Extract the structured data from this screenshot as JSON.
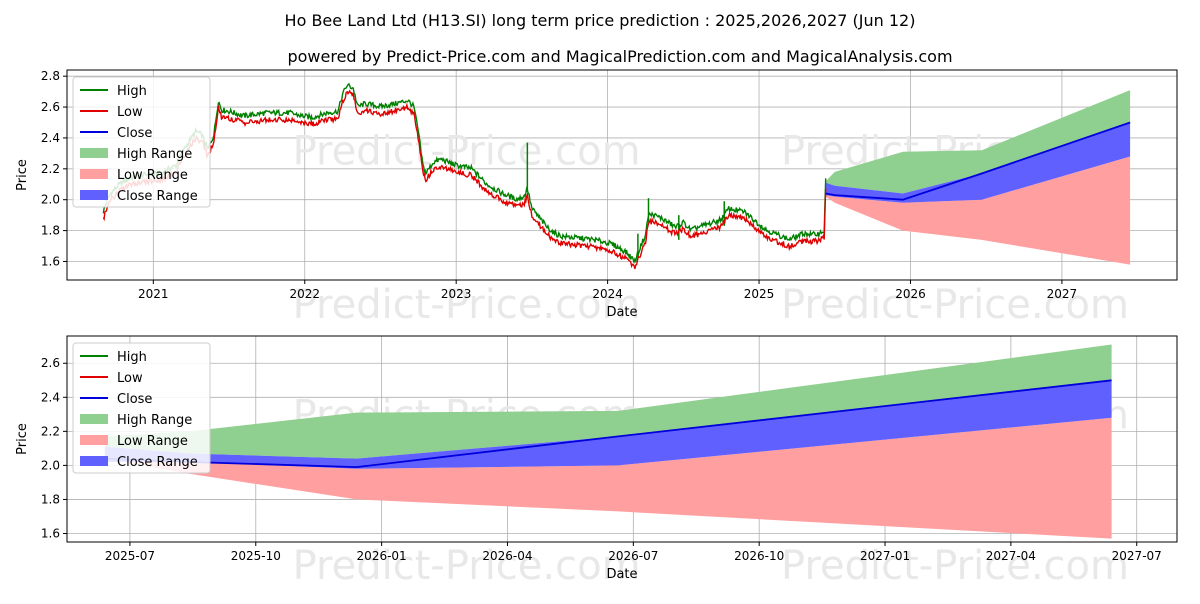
{
  "title": "Ho Bee Land Ltd (H13.SI) long term price prediction : 2025,2026,2027 (Jun 12)",
  "subtitle": "powered by Predict-Price.com and MagicalPrediction.com and MagicalAnalysis.com",
  "watermark": "Predict-Price.com",
  "colors": {
    "high": "#008000",
    "low": "#e00000",
    "close": "#0000dd",
    "high_range": "#8fcf8f",
    "low_range": "#ff9f9f",
    "close_range": "#6060ff"
  },
  "chart_data": [
    {
      "type": "line",
      "name": "long-term",
      "xlabel": "Date",
      "ylabel": "Price",
      "xlim": [
        2020.43,
        2027.76
      ],
      "ylim": [
        1.48,
        2.84
      ],
      "xticks": [
        {
          "v": 2021,
          "label": "2021"
        },
        {
          "v": 2022,
          "label": "2022"
        },
        {
          "v": 2023,
          "label": "2023"
        },
        {
          "v": 2024,
          "label": "2024"
        },
        {
          "v": 2025,
          "label": "2025"
        },
        {
          "v": 2026,
          "label": "2026"
        },
        {
          "v": 2027,
          "label": "2027"
        }
      ],
      "yticks": [
        {
          "v": 1.6,
          "label": "1.6"
        },
        {
          "v": 1.8,
          "label": "1.8"
        },
        {
          "v": 2.0,
          "label": "2.0"
        },
        {
          "v": 2.2,
          "label": "2.2"
        },
        {
          "v": 2.4,
          "label": "2.4"
        },
        {
          "v": 2.6,
          "label": "2.6"
        },
        {
          "v": 2.8,
          "label": "2.8"
        }
      ],
      "legend": [
        "High",
        "Low",
        "Close",
        "High Range",
        "Low Range",
        "Close Range"
      ],
      "legend_position": "top-left",
      "history": {
        "x": [
          2020.67,
          2020.69,
          2020.72,
          2020.78,
          2020.85,
          2020.95,
          2021.05,
          2021.15,
          2021.2,
          2021.28,
          2021.32,
          2021.36,
          2021.4,
          2021.43,
          2021.45,
          2021.5,
          2021.6,
          2021.75,
          2021.9,
          2021.98,
          2022.05,
          2022.15,
          2022.22,
          2022.25,
          2022.28,
          2022.32,
          2022.35,
          2022.4,
          2022.5,
          2022.6,
          2022.68,
          2022.72,
          2022.75,
          2022.78,
          2022.8,
          2022.85,
          2022.9,
          2023.0,
          2023.1,
          2023.2,
          2023.3,
          2023.4,
          2023.45,
          2023.47,
          2023.5,
          2023.55,
          2023.6,
          2023.65,
          2023.7,
          2023.8,
          2023.9,
          2024.0,
          2024.05,
          2024.12,
          2024.18,
          2024.22,
          2024.25,
          2024.27,
          2024.3,
          2024.35,
          2024.45,
          2024.5,
          2024.55,
          2024.6,
          2024.7,
          2024.75,
          2024.8,
          2024.9,
          2025.0,
          2025.05,
          2025.1,
          2025.15,
          2025.2,
          2025.25,
          2025.3,
          2025.35,
          2025.4,
          2025.43,
          2025.44
        ],
        "close": [
          1.9,
          1.96,
          2.02,
          2.08,
          2.12,
          2.14,
          2.15,
          2.2,
          2.3,
          2.42,
          2.4,
          2.3,
          2.4,
          2.62,
          2.56,
          2.55,
          2.52,
          2.54,
          2.54,
          2.52,
          2.51,
          2.54,
          2.55,
          2.66,
          2.72,
          2.7,
          2.58,
          2.6,
          2.58,
          2.6,
          2.62,
          2.58,
          2.42,
          2.2,
          2.15,
          2.22,
          2.24,
          2.2,
          2.18,
          2.08,
          2.02,
          1.98,
          2.0,
          2.05,
          1.92,
          1.86,
          1.8,
          1.76,
          1.74,
          1.73,
          1.72,
          1.7,
          1.68,
          1.64,
          1.58,
          1.68,
          1.75,
          1.88,
          1.88,
          1.86,
          1.8,
          1.83,
          1.78,
          1.8,
          1.83,
          1.85,
          1.92,
          1.9,
          1.82,
          1.78,
          1.76,
          1.74,
          1.72,
          1.74,
          1.76,
          1.75,
          1.76,
          1.78,
          2.1
        ],
        "spikes": [
          {
            "x": 2023.47,
            "high": 2.37
          },
          {
            "x": 2024.27,
            "high": 2.01
          },
          {
            "x": 2024.2,
            "high": 1.78
          },
          {
            "x": 2024.47,
            "high": 1.9
          },
          {
            "x": 2024.77,
            "high": 1.99
          }
        ]
      },
      "forecast": {
        "x": [
          2025.44,
          2025.5,
          2025.95,
          2026.47,
          2027.45
        ],
        "close": [
          2.04,
          2.03,
          2.0,
          2.17,
          2.5
        ],
        "high": [
          2.12,
          2.18,
          2.31,
          2.32,
          2.71
        ],
        "low": [
          2.02,
          1.98,
          1.8,
          1.74,
          1.58
        ],
        "close_hi": [
          2.11,
          2.09,
          2.04,
          2.17,
          2.5
        ],
        "close_lo": [
          2.03,
          2.02,
          1.98,
          2.0,
          2.28
        ]
      }
    },
    {
      "type": "area",
      "name": "zoomed-forecast",
      "xlabel": "Date",
      "ylabel": "Price",
      "xlim": [
        2025.375,
        2027.58
      ],
      "ylim": [
        1.55,
        2.76
      ],
      "xticks": [
        {
          "v": 2025.5,
          "label": "2025-07"
        },
        {
          "v": 2025.75,
          "label": "2025-10"
        },
        {
          "v": 2026.0,
          "label": "2026-01"
        },
        {
          "v": 2026.25,
          "label": "2026-04"
        },
        {
          "v": 2026.5,
          "label": "2026-07"
        },
        {
          "v": 2026.75,
          "label": "2026-10"
        },
        {
          "v": 2027.0,
          "label": "2027-01"
        },
        {
          "v": 2027.25,
          "label": "2027-04"
        },
        {
          "v": 2027.5,
          "label": "2027-07"
        }
      ],
      "yticks": [
        {
          "v": 1.6,
          "label": "1.6"
        },
        {
          "v": 1.8,
          "label": "1.8"
        },
        {
          "v": 2.0,
          "label": "2.0"
        },
        {
          "v": 2.2,
          "label": "2.2"
        },
        {
          "v": 2.4,
          "label": "2.4"
        },
        {
          "v": 2.6,
          "label": "2.6"
        }
      ],
      "legend": [
        "High",
        "Low",
        "Close",
        "High Range",
        "Low Range",
        "Close Range"
      ],
      "legend_position": "top-left",
      "forecast": {
        "x": [
          2025.45,
          2025.62,
          2025.95,
          2026.47,
          2027.45
        ],
        "close": [
          2.04,
          2.02,
          1.99,
          2.17,
          2.5
        ],
        "high": [
          2.17,
          2.2,
          2.31,
          2.32,
          2.71
        ],
        "low": [
          2.04,
          1.95,
          1.8,
          1.73,
          1.57
        ],
        "close_hi": [
          2.11,
          2.07,
          2.04,
          2.17,
          2.5
        ],
        "close_lo": [
          2.02,
          2.02,
          1.98,
          2.0,
          2.28
        ]
      }
    }
  ]
}
